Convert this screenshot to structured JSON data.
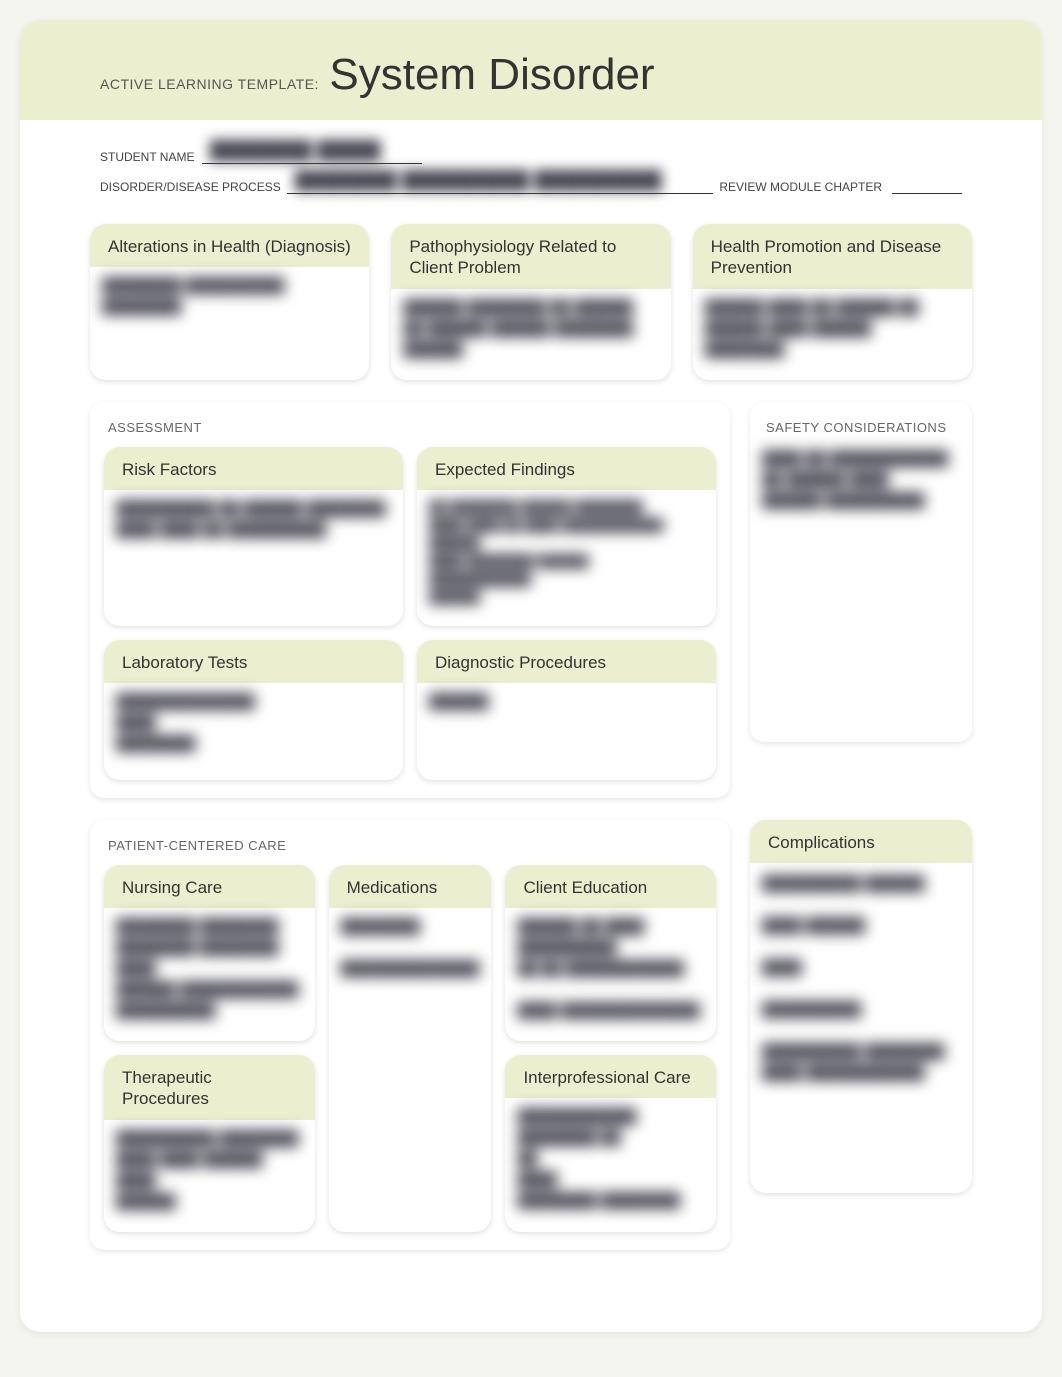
{
  "header": {
    "template_label": "ACTIVE LEARNING TEMPLATE:",
    "title": "System Disorder",
    "student_name_label": "STUDENT NAME",
    "student_name_value": "████████  █████",
    "disease_label": "DISORDER/DISEASE PROCESS",
    "disease_value": "████████  ██████████  ██████████",
    "review_label": "REVIEW MODULE CHAPTER",
    "review_value": ""
  },
  "top_cards": {
    "alterations": {
      "title": "Alterations in Health (Diagnosis)",
      "content": "████████ ██████████ ████████"
    },
    "patho": {
      "title": "Pathophysiology Related to Client Problem",
      "content": "██████  ████████  ██ ██████\n██ ██████ ██████  ████████\n██████"
    },
    "health_promo": {
      "title": "Health Promotion and Disease Prevention",
      "content": "██████ ████  ██  ██████  ██\n██████ ████  ██████\n████████"
    }
  },
  "assessment": {
    "heading": "ASSESSMENT",
    "risk": {
      "title": "Risk Factors",
      "content": "  ██████████  ██  ██████ ████████\n████ ████  ██  ██████████"
    },
    "expected": {
      "title": "Expected Findings",
      "content": "██ ████████       ██████ ████████\n████  ████ ██    ████ ████████████\n██████\n████ ████████   ██████\n████████████\n██████"
    },
    "labs": {
      "title": "Laboratory Tests",
      "content": " ██████████████\n ████\n ████████"
    },
    "diagnostic": {
      "title": "Diagnostic Procedures",
      "content": " ██████"
    }
  },
  "safety": {
    "heading": "SAFETY CONSIDERATIONS",
    "content": " ████ ██  ████████████\n██  ██████ ████\n██████  ██████████"
  },
  "pcc": {
    "heading": "PATIENT-CENTERED CARE",
    "nursing": {
      "title": "Nursing Care",
      "content": " ████████  ████████\n ████████  ████████  ████\n ██████  ████████████\n ██████████"
    },
    "meds": {
      "title": "Medications",
      "content": " ████████\n\n ██████████████"
    },
    "client_ed": {
      "title": "Client Education",
      "content": " ██████  ██  ████  ██████████\n██ ██ ████████████\n\n ████  ██████████████"
    },
    "therapeutic": {
      "title": "Therapeutic Procedures",
      "content": " ██████████  ████████\n████  ████  ██████  ████\n ██████"
    },
    "interprof": {
      "title": "Interprofessional Care",
      "content": " ████████████  ████████  ██\n ██\n ████\n ████████ ████████"
    }
  },
  "complications": {
    "title": "Complications",
    "content": " ██████████ ██████\n\n ████  ██████\n\n ████\n\n ██████████\n\n ██████████  ████████\n████ ████████████"
  },
  "colors": {
    "band": "#eceed0",
    "page_bg": "#ffffff",
    "outer_bg": "#f5f5f0",
    "heading_text": "#666666",
    "body_text": "#333333"
  }
}
